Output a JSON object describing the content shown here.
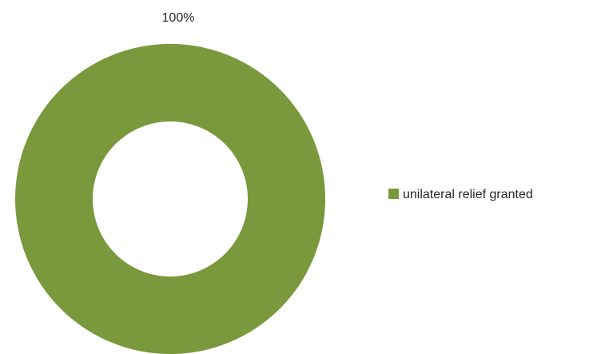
{
  "chart_data": {
    "type": "pie",
    "variant": "donut",
    "title": "",
    "slices": [
      {
        "label": "unilateral relief granted",
        "value": 100,
        "display": "100%",
        "color": "#7A993C"
      }
    ],
    "legend": {
      "position": "right"
    }
  }
}
